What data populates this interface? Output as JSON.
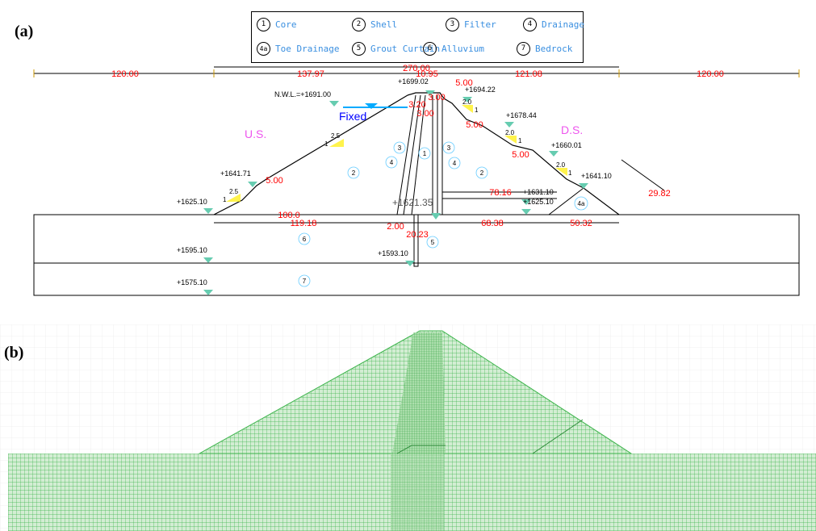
{
  "panel_labels": {
    "a": "(a)",
    "b": "(b)"
  },
  "legend": [
    {
      "num": "1",
      "label": "Core"
    },
    {
      "num": "2",
      "label": "Shell"
    },
    {
      "num": "3",
      "label": "Filter"
    },
    {
      "num": "4",
      "label": "Drainage"
    },
    {
      "num": "4a",
      "label": "Toe Drainage"
    },
    {
      "num": "5",
      "label": "Grout Curtain"
    },
    {
      "num": "6",
      "label": "Alluvium"
    },
    {
      "num": "7",
      "label": "Bedrock"
    }
  ],
  "dimensions": {
    "left_extent": "120.00",
    "right_extent": "120.00",
    "total_width": "270.00",
    "us_width": "137.97",
    "crest_width": "10.95",
    "ds_width": "121.08",
    "berm_top_right": "5.00",
    "crest_offset_a": "3.20",
    "crest_offset_b": "3.00",
    "crest_offset_c": "3.00",
    "ds_berm_1": "5.00",
    "ds_berm_2": "5.00",
    "us_berm": "5.00",
    "toe_slope": "29.82",
    "drain_length": "78.16",
    "found_us": "100.0",
    "found_us_b": "119.18",
    "found_ds": "68.38",
    "found_ds_b": "50.32",
    "core_base": "2.00",
    "grout_width": "20.23"
  },
  "elevations": {
    "crest": "+1699.02",
    "nwl": "N.W.L.=+1691.00",
    "ds_1": "+1694.22",
    "ds_2": "+1678.44",
    "ds_3": "+1660.01",
    "ds_4": "+1641.10",
    "ds_5": "+1631.10",
    "ds_6": "+1625.10",
    "us_berm": "+1641.71",
    "us_toe": "+1625.10",
    "alluvium_bottom": "+1595.10",
    "bedrock_bottom": "+1575.10",
    "grout_bottom": "+1593.10",
    "core_bottom": "+1621.35"
  },
  "slopes": {
    "us_upper_h": "2.5",
    "us_upper_v": "1",
    "us_lower_h": "2.5",
    "us_lower_v": "1",
    "ds_1_h": "2.0",
    "ds_1_v": "1",
    "ds_2_h": "2.0",
    "ds_2_v": "1",
    "ds_3_h": "2.0",
    "ds_3_v": "1"
  },
  "annotations": {
    "fixed": "Fixed",
    "us": "U.S.",
    "ds": "D.S."
  },
  "zones": {
    "core": "1",
    "shell_us": "2",
    "shell_ds": "2",
    "filter_us": "3",
    "filter_ds": "3",
    "drain_us": "4",
    "drain_ds": "4",
    "toe_drain": "4a",
    "grout": "5",
    "alluvium": "6",
    "bedrock": "7"
  },
  "colors": {
    "dimension": "#ff0000",
    "elevation_marker": "#66ccb0",
    "water": "#00aaff",
    "fixed": "#0000ff",
    "side_label": "#ee55ee",
    "legend_text": "#3a8fe0",
    "slope_mark": "#ffee00",
    "mesh": "#3cb44b",
    "mesh_fill": "#bfe6bf",
    "core_mesh": "#2e9e3e"
  }
}
